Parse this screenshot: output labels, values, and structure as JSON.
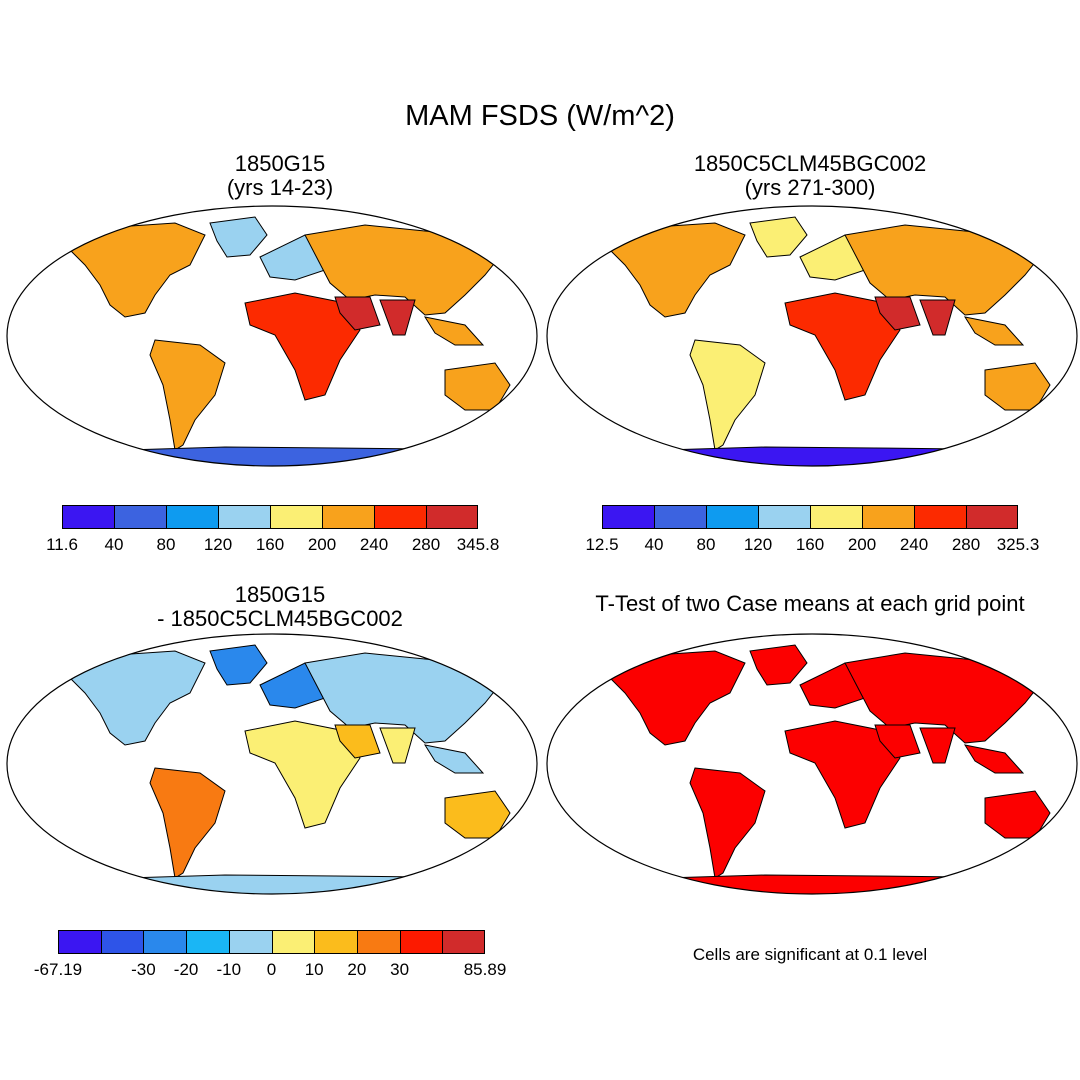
{
  "figure": {
    "title": "MAM FSDS (W/m^2)"
  },
  "panels": [
    {
      "id": "p1",
      "title_line1": "1850G15",
      "title_line2": "(yrs 14-23)",
      "colorbar": {
        "colors": [
          "#3b16f2",
          "#3c63e0",
          "#0e9bf0",
          "#9ad2f0",
          "#fbef74",
          "#f8a21c",
          "#fc2a00",
          "#d12b2b"
        ],
        "labels": [
          "11.6",
          "40",
          "80",
          "120",
          "160",
          "200",
          "240",
          "280",
          "345.8"
        ]
      }
    },
    {
      "id": "p2",
      "title_line1": "1850C5CLM45BGC002",
      "title_line2": "(yrs 271-300)",
      "colorbar": {
        "colors": [
          "#3b16f2",
          "#3c63e0",
          "#0e9bf0",
          "#9ad2f0",
          "#fbef74",
          "#f8a21c",
          "#fc2a00",
          "#d12b2b"
        ],
        "labels": [
          "12.5",
          "40",
          "80",
          "120",
          "160",
          "200",
          "240",
          "280",
          "325.3"
        ]
      }
    },
    {
      "id": "p3",
      "title_line1": "1850G15",
      "title_line2": "- 1850C5CLM45BGC002",
      "colorbar": {
        "colors": [
          "#3b16f2",
          "#2e54e8",
          "#2a88ec",
          "#1ab6f5",
          "#9ad2f0",
          "#fbef74",
          "#fbbc1c",
          "#f87a12",
          "#fc1a00",
          "#d12b2b"
        ],
        "labels": [
          "-67.19",
          "",
          "-30",
          "-20",
          "-10",
          "0",
          "10",
          "20",
          "30",
          "",
          "85.89"
        ]
      }
    },
    {
      "id": "p4",
      "title_line1": "T-Test of two Case means at each grid point",
      "note": "Cells are significant at 0.1 level",
      "sig_color": "#fc0000"
    }
  ]
}
